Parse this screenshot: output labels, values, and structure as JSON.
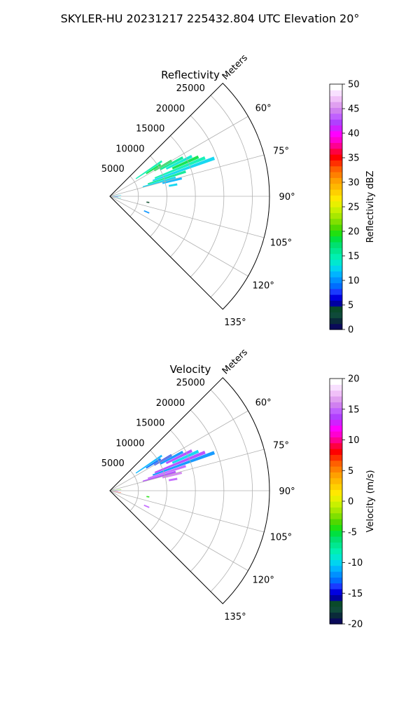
{
  "figure": {
    "title": "SKYLER-HU  20231217  225432.804 UTC Elevation 20°"
  },
  "chart_data": [
    {
      "type": "heatmap",
      "projection": "polar-sector",
      "title": "Reflectivity",
      "range_label": "Meters",
      "range_ticks": [
        5000,
        10000,
        15000,
        20000,
        25000
      ],
      "range_max": 28000,
      "azimuth_range": [
        45,
        135
      ],
      "azimuth_ticks": [
        "60°",
        "75°",
        "90°",
        "105°",
        "120°",
        "135°"
      ],
      "azimuth_tick_values": [
        60,
        75,
        90,
        105,
        120,
        135
      ],
      "grid": true,
      "colorbar": {
        "label": "Reflectivity dBZ",
        "min": 0,
        "max": 50,
        "ticks": [
          "0",
          "5",
          "10",
          "15",
          "20",
          "25",
          "30",
          "35",
          "40",
          "45",
          "50"
        ],
        "colors": [
          "#0a0a5a",
          "#0a2a3a",
          "#0f4a3a",
          "#0a4a2a",
          "#0000a0",
          "#0000e0",
          "#1a3aff",
          "#006dff",
          "#0090ff",
          "#00b4ff",
          "#00d4f0",
          "#00e8d0",
          "#00f0b0",
          "#00e890",
          "#00e070",
          "#00e040",
          "#20e010",
          "#50d800",
          "#80e000",
          "#a8e800",
          "#c8f000",
          "#e8f000",
          "#ffe800",
          "#ffd000",
          "#ffb800",
          "#ffa000",
          "#ff8000",
          "#ff6000",
          "#ff3000",
          "#ff0000",
          "#ff0040",
          "#ff0090",
          "#ff00d0",
          "#ff00ff",
          "#d020ff",
          "#b040ff",
          "#c060ff",
          "#d080f0",
          "#e0a0f0",
          "#f0c0f8",
          "#f8e0ff",
          "#ffffff"
        ]
      },
      "echoes": [
        {
          "az": 56,
          "r0": 5500,
          "r1": 11000,
          "val": 15
        },
        {
          "az": 58,
          "r0": 7500,
          "r1": 10500,
          "val": 19
        },
        {
          "az": 60,
          "r0": 9000,
          "r1": 12500,
          "val": 19
        },
        {
          "az": 62,
          "r0": 10000,
          "r1": 14500,
          "val": 16
        },
        {
          "az": 64,
          "r0": 11000,
          "r1": 16000,
          "val": 14
        },
        {
          "az": 66,
          "r0": 12000,
          "r1": 17000,
          "val": 18
        },
        {
          "az": 68,
          "r0": 8500,
          "r1": 18000,
          "val": 15
        },
        {
          "az": 70,
          "r0": 8000,
          "r1": 19500,
          "val": 13
        },
        {
          "az": 72,
          "r0": 7000,
          "r1": 14000,
          "val": 16
        },
        {
          "az": 74,
          "r0": 6000,
          "r1": 12000,
          "val": 12
        },
        {
          "az": 76,
          "r0": 9500,
          "r1": 13000,
          "val": 11
        },
        {
          "az": 80,
          "r0": 10500,
          "r1": 12000,
          "val": 13
        },
        {
          "az": 84,
          "r0": 500,
          "r1": 2000,
          "val": 13
        },
        {
          "az": 90,
          "r0": 500,
          "r1": 1800,
          "val": 10
        },
        {
          "az": 95,
          "r0": 500,
          "r1": 1500,
          "val": 6
        },
        {
          "az": 100,
          "r0": 500,
          "r1": 2000,
          "val": 14
        },
        {
          "az": 99,
          "r0": 6500,
          "r1": 7000,
          "val": 4
        },
        {
          "az": 113,
          "r0": 6500,
          "r1": 7500,
          "val": 10
        }
      ]
    },
    {
      "type": "heatmap",
      "projection": "polar-sector",
      "title": "Velocity",
      "range_label": "Meters",
      "range_ticks": [
        5000,
        10000,
        15000,
        20000,
        25000
      ],
      "range_max": 28000,
      "azimuth_range": [
        45,
        135
      ],
      "azimuth_ticks": [
        "60°",
        "75°",
        "90°",
        "105°",
        "120°",
        "135°"
      ],
      "azimuth_tick_values": [
        60,
        75,
        90,
        105,
        120,
        135
      ],
      "grid": true,
      "colorbar": {
        "label": "Velocity (m/s)",
        "min": -20,
        "max": 20,
        "ticks": [
          "-20",
          "-15",
          "-10",
          "-5",
          "0",
          "5",
          "10",
          "15",
          "20"
        ],
        "colors": [
          "#0a0a5a",
          "#0a2a3a",
          "#0f4a3a",
          "#0a4a2a",
          "#0000a0",
          "#0000e0",
          "#1a3aff",
          "#006dff",
          "#0090ff",
          "#00b4ff",
          "#00d4f0",
          "#00e8d0",
          "#00f0b0",
          "#00e890",
          "#00e070",
          "#00e040",
          "#20e010",
          "#50d800",
          "#80e000",
          "#a8e800",
          "#c8f000",
          "#e8f000",
          "#ffe800",
          "#ffd000",
          "#ffb800",
          "#ffa000",
          "#ff8000",
          "#ff6000",
          "#ff3000",
          "#ff0000",
          "#ff0040",
          "#ff0090",
          "#ff00d0",
          "#ff00ff",
          "#d020ff",
          "#b040ff",
          "#c060ff",
          "#d080f0",
          "#e0a0f0",
          "#f0c0f8",
          "#f8e0ff",
          "#ffffff"
        ]
      },
      "echoes": [
        {
          "az": 56,
          "r0": 5500,
          "r1": 11000,
          "val": -11
        },
        {
          "az": 58,
          "r0": 7500,
          "r1": 10500,
          "val": -13
        },
        {
          "az": 60,
          "r0": 9000,
          "r1": 12500,
          "val": -14
        },
        {
          "az": 62,
          "r0": 10000,
          "r1": 14500,
          "val": -12
        },
        {
          "az": 64,
          "r0": 11000,
          "r1": 16000,
          "val": 14
        },
        {
          "az": 66,
          "r0": 12000,
          "r1": 17000,
          "val": -10
        },
        {
          "az": 68,
          "r0": 8500,
          "r1": 18000,
          "val": 14
        },
        {
          "az": 70,
          "r0": 8000,
          "r1": 19500,
          "val": -12
        },
        {
          "az": 72,
          "r0": 7000,
          "r1": 14000,
          "val": 15
        },
        {
          "az": 74,
          "r0": 6000,
          "r1": 12000,
          "val": 14
        },
        {
          "az": 76,
          "r0": 9500,
          "r1": 13000,
          "val": 16
        },
        {
          "az": 80,
          "r0": 10500,
          "r1": 12000,
          "val": 15
        },
        {
          "az": 84,
          "r0": 500,
          "r1": 2000,
          "val": -3
        },
        {
          "az": 90,
          "r0": 500,
          "r1": 1800,
          "val": -12
        },
        {
          "az": 95,
          "r0": 500,
          "r1": 1500,
          "val": 13
        },
        {
          "az": 100,
          "r0": 500,
          "r1": 2000,
          "val": 7
        },
        {
          "az": 99,
          "r0": 6500,
          "r1": 7000,
          "val": -4
        },
        {
          "az": 113,
          "r0": 6500,
          "r1": 7500,
          "val": 15
        }
      ]
    }
  ]
}
